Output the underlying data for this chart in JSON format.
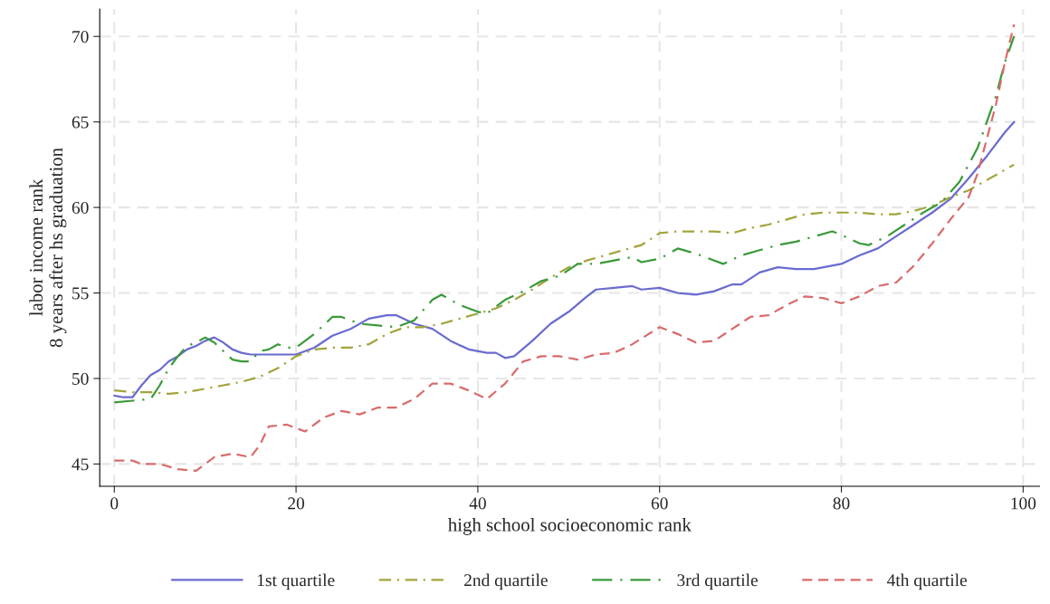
{
  "chart_data": {
    "type": "line",
    "xlabel": "high school socioeconomic rank",
    "ylabel": "labor income rank\n8 years after hs graduation",
    "xlim": [
      -1.6,
      101.8
    ],
    "ylim": [
      43.7,
      71.6
    ],
    "xticks": [
      0,
      20,
      40,
      60,
      80,
      100
    ],
    "yticks": [
      45,
      50,
      55,
      60,
      65,
      70
    ],
    "grid": true,
    "legend": "bottom",
    "marker": "none",
    "series": [
      {
        "name": "1st quartile",
        "color": "#6a6bd0",
        "line_style": "solid",
        "x": [
          0,
          1,
          2,
          3,
          4,
          5,
          6,
          7,
          8,
          9,
          10,
          11,
          12,
          13,
          14,
          15,
          16,
          17,
          18,
          19,
          20,
          22,
          24,
          26,
          28,
          30,
          31,
          33,
          35,
          37,
          39,
          41,
          42,
          43,
          44,
          46,
          48,
          50,
          52,
          53,
          55,
          57,
          58,
          60,
          62,
          64,
          66,
          68,
          69,
          71,
          73,
          75,
          77,
          80,
          82,
          84,
          86,
          88,
          90,
          92,
          94,
          96,
          98,
          99
        ],
        "values": [
          49.0,
          48.9,
          48.9,
          49.6,
          50.2,
          50.5,
          51.0,
          51.3,
          51.7,
          51.9,
          52.2,
          52.4,
          52.1,
          51.7,
          51.5,
          51.4,
          51.4,
          51.4,
          51.4,
          51.4,
          51.4,
          51.8,
          52.5,
          52.9,
          53.5,
          53.7,
          53.7,
          53.2,
          52.9,
          52.2,
          51.7,
          51.5,
          51.5,
          51.2,
          51.3,
          52.2,
          53.2,
          53.9,
          54.8,
          55.2,
          55.3,
          55.4,
          55.2,
          55.3,
          55.0,
          54.9,
          55.1,
          55.5,
          55.5,
          56.2,
          56.5,
          56.4,
          56.4,
          56.7,
          57.2,
          57.6,
          58.3,
          59.0,
          59.7,
          60.5,
          61.7,
          63.0,
          64.4,
          65.0
        ]
      },
      {
        "name": "2nd quartile",
        "color": "#a3a33c",
        "line_style": "dashdot",
        "x": [
          0,
          2,
          4,
          6,
          8,
          10,
          12,
          14,
          16,
          18,
          20,
          22,
          24,
          26,
          28,
          30,
          32,
          34,
          36,
          38,
          40,
          42,
          44,
          46,
          48,
          50,
          52,
          54,
          56,
          58,
          60,
          62,
          64,
          66,
          68,
          70,
          72,
          74,
          76,
          78,
          80,
          82,
          84,
          86,
          88,
          90,
          92,
          94,
          96,
          98,
          99
        ],
        "values": [
          49.3,
          49.2,
          49.2,
          49.1,
          49.2,
          49.4,
          49.6,
          49.8,
          50.1,
          50.6,
          51.3,
          51.7,
          51.8,
          51.8,
          52.0,
          52.6,
          53.0,
          53.0,
          53.2,
          53.5,
          53.8,
          54.1,
          54.6,
          55.2,
          55.9,
          56.5,
          56.9,
          57.2,
          57.5,
          57.8,
          58.5,
          58.6,
          58.6,
          58.6,
          58.5,
          58.8,
          59.0,
          59.3,
          59.6,
          59.7,
          59.7,
          59.7,
          59.6,
          59.6,
          59.8,
          60.1,
          60.6,
          61.0,
          61.6,
          62.2,
          62.5
        ]
      },
      {
        "name": "3rd quartile",
        "color": "#3a9a3a",
        "line_style": "longdashdot",
        "x": [
          0,
          2,
          4,
          5,
          6,
          7,
          8,
          9,
          10,
          11,
          12,
          13,
          14,
          15,
          16,
          17,
          18,
          19,
          20,
          22,
          24,
          25,
          27,
          29,
          31,
          33,
          35,
          36,
          38,
          40,
          41,
          43,
          45,
          47,
          49,
          51,
          53,
          55,
          57,
          58,
          60,
          62,
          64,
          67,
          69,
          71,
          73,
          75,
          77,
          79,
          80,
          82,
          83,
          85,
          87,
          89,
          91,
          93,
          95,
          97,
          98,
          99
        ],
        "values": [
          48.6,
          48.7,
          48.8,
          49.6,
          50.6,
          51.3,
          51.9,
          52.1,
          52.4,
          52.1,
          51.6,
          51.1,
          51.0,
          51.0,
          51.6,
          51.7,
          52.0,
          51.8,
          51.8,
          52.6,
          53.6,
          53.6,
          53.2,
          53.1,
          53.0,
          53.4,
          54.6,
          54.9,
          54.3,
          53.9,
          53.8,
          54.6,
          55.1,
          55.7,
          56.0,
          56.7,
          56.7,
          56.9,
          57.1,
          56.8,
          57.0,
          57.6,
          57.3,
          56.7,
          57.2,
          57.5,
          57.8,
          58.0,
          58.3,
          58.6,
          58.4,
          57.9,
          57.8,
          58.3,
          59.0,
          59.7,
          60.3,
          61.5,
          63.5,
          66.5,
          68.5,
          70.0
        ]
      },
      {
        "name": "4th quartile",
        "color": "#d96b6b",
        "line_style": "dashed",
        "x": [
          0,
          2,
          3,
          5,
          7,
          9,
          10,
          11,
          13,
          15,
          16,
          17,
          19,
          21,
          23,
          25,
          27,
          29,
          31,
          33,
          35,
          37,
          39,
          41,
          43,
          45,
          47,
          49,
          51,
          53,
          55,
          57,
          60,
          62,
          64,
          66,
          68,
          70,
          72,
          74,
          76,
          78,
          80,
          82,
          84,
          86,
          88,
          90,
          92,
          94,
          95,
          97,
          98,
          99
        ],
        "values": [
          45.2,
          45.2,
          45.0,
          45.0,
          44.7,
          44.6,
          45.0,
          45.4,
          45.6,
          45.4,
          46.1,
          47.2,
          47.3,
          46.9,
          47.7,
          48.1,
          47.9,
          48.3,
          48.3,
          48.8,
          49.7,
          49.7,
          49.3,
          48.8,
          49.7,
          51.0,
          51.3,
          51.3,
          51.1,
          51.4,
          51.5,
          52.0,
          53.0,
          52.6,
          52.1,
          52.2,
          52.9,
          53.6,
          53.7,
          54.3,
          54.8,
          54.7,
          54.4,
          54.8,
          55.4,
          55.6,
          56.6,
          57.9,
          59.3,
          60.6,
          62.0,
          66.0,
          68.5,
          70.7
        ]
      }
    ]
  }
}
